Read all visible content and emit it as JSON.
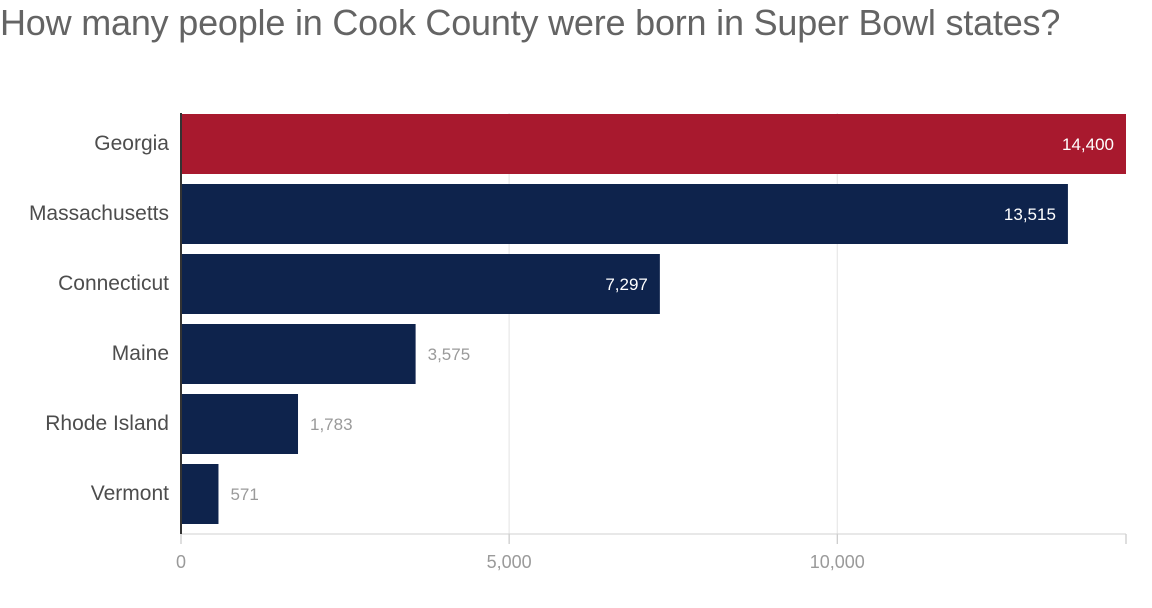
{
  "title": "How many people in Cook County were born in Super Bowl states?",
  "colors": {
    "highlight": "#a8192e",
    "bar": "#0e234c",
    "grid": "#e3e3e3",
    "axis": "#333333",
    "label_outside": "#9a9a9a",
    "label_inside": "#ffffff"
  },
  "chart_data": {
    "type": "bar",
    "orientation": "horizontal",
    "title": "How many people in Cook County were born in Super Bowl states?",
    "xlabel": "",
    "ylabel": "",
    "categories": [
      "Georgia",
      "Massachusetts",
      "Connecticut",
      "Maine",
      "Rhode Island",
      "Vermont"
    ],
    "values": [
      14400,
      13515,
      7297,
      3575,
      1783,
      571
    ],
    "value_labels": [
      "14,400",
      "13,515",
      "7,297",
      "3,575",
      "1,783",
      "571"
    ],
    "highlighted_category": "Georgia",
    "xlim": [
      0,
      14400
    ],
    "x_ticks": [
      0,
      5000,
      10000
    ],
    "x_tick_labels": [
      "0",
      "5,000",
      "10,000"
    ],
    "grid": true,
    "legend": "none"
  }
}
